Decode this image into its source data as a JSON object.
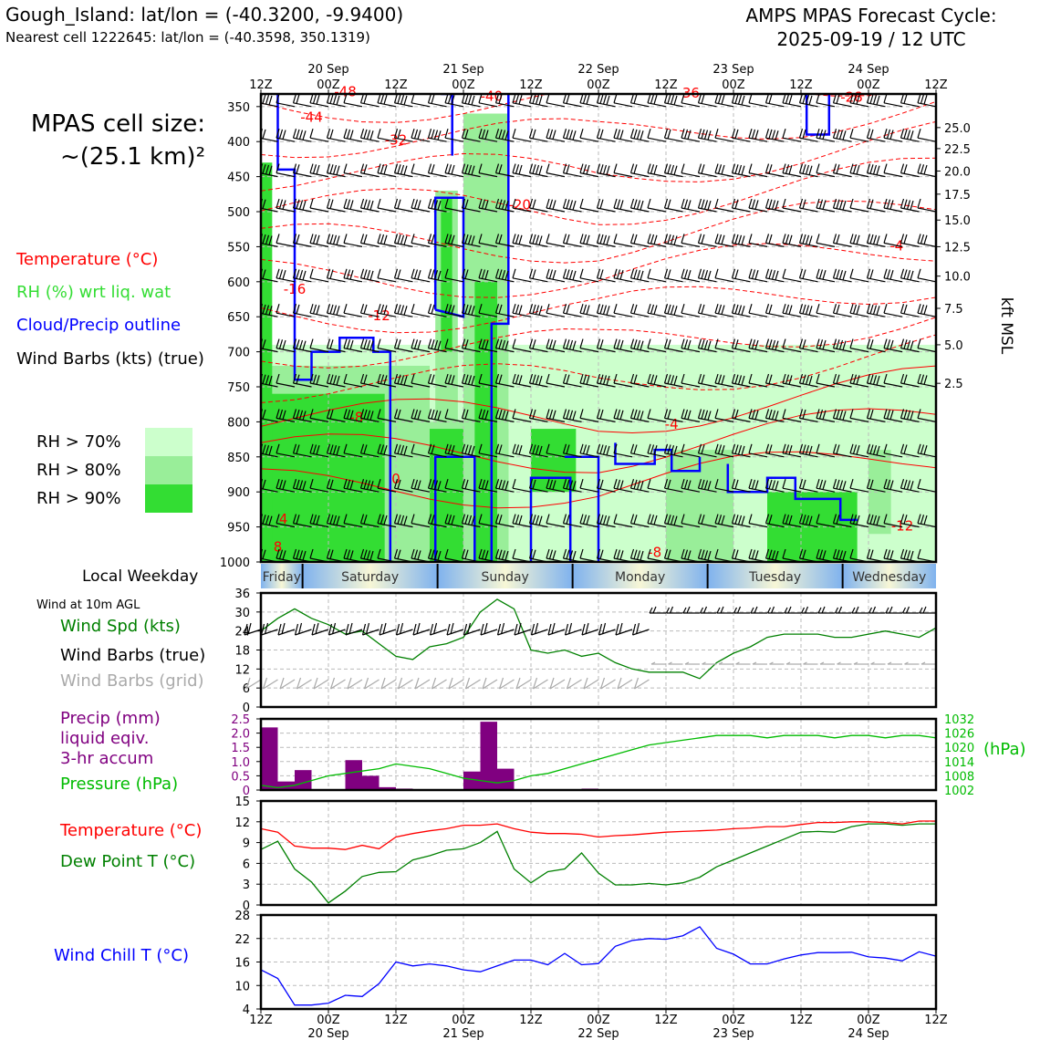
{
  "header": {
    "station": "Gough_Island: lat/lon = (-40.3200, -9.9400)",
    "nearest": "Nearest cell 1222645: lat/lon = (-40.3598, 350.1319)",
    "cycle_line1": "AMPS MPAS Forecast Cycle:",
    "cycle_line2": "2025-09-19 / 12 UTC",
    "cell_line1": "MPAS cell size:",
    "cell_line2": "~(25.1 km)²"
  },
  "legend": {
    "temperature": "Temperature (°C)",
    "rh": "RH (%) wrt liq. wat",
    "cloud": "Cloud/Precip outline",
    "wind": "Wind Barbs (kts) (true)",
    "rh70": "RH > 70%",
    "rh80": "RH > 80%",
    "rh90": "RH > 90%",
    "local_weekday": "Local Weekday",
    "wind10m": "Wind at 10m AGL",
    "wind_spd": "Wind Spd (kts)",
    "wind_barbs_true": "Wind Barbs (true)",
    "wind_barbs_grid": "Wind Barbs (grid)",
    "precip1": "Precip (mm)",
    "precip2": "liquid eqiv.",
    "precip3": "3-hr accum",
    "pressure": "Pressure (hPa)",
    "temp2": "Temperature (°C)",
    "dew": "Dew Point T (°C)",
    "windchill": "Wind Chill T (°C)"
  },
  "colors": {
    "temperature": "#ff0000",
    "rh": "#33dd33",
    "cloud": "#0000ff",
    "wind": "#000000",
    "rh70": "#ccffcc",
    "rh80": "#99ee99",
    "rh90": "#33dd33",
    "windspd": "#008000",
    "precip": "#800080",
    "pressure": "#00bb00",
    "dewpoint": "#008000",
    "windchill": "#0000ff",
    "grid_barbs": "#aaaaaa"
  },
  "time_axis": {
    "tick_labels": [
      "12Z",
      "00Z",
      "12Z",
      "00Z",
      "12Z",
      "00Z",
      "12Z",
      "00Z",
      "12Z",
      "00Z",
      "12Z"
    ],
    "tick_hours": [
      0,
      12,
      24,
      36,
      48,
      60,
      72,
      84,
      96,
      108,
      120
    ],
    "date_labels": [
      "20 Sep",
      "21 Sep",
      "22 Sep",
      "23 Sep",
      "24 Sep"
    ],
    "date_hours": [
      12,
      36,
      60,
      84,
      108
    ]
  },
  "weekdays": [
    "Friday",
    "Saturday",
    "Sunday",
    "Monday",
    "Tuesday",
    "Wednesday"
  ],
  "chart_data": [
    {
      "type": "heatmap",
      "title": "",
      "ylabel": "",
      "ylabel_right": "kft MSL",
      "y_ticks_hpa": [
        350,
        400,
        450,
        500,
        550,
        600,
        650,
        700,
        750,
        800,
        850,
        900,
        950,
        1000
      ],
      "right_ticks_kft": [
        "25.0",
        "22.5",
        "20.0",
        "17.5",
        "15.0",
        "12.5",
        "10.0",
        "7.5",
        "5.0",
        "2.5"
      ],
      "right_ticks_hpa": [
        380,
        410,
        442,
        475,
        512,
        550,
        592,
        638,
        690,
        745
      ],
      "temp_contour_labels": [
        {
          "text": "-48",
          "hour": 15,
          "hpa": 335
        },
        {
          "text": "-44",
          "hour": 9,
          "hpa": 372
        },
        {
          "text": "-40",
          "hour": 41,
          "hpa": 342
        },
        {
          "text": "-36",
          "hour": 76,
          "hpa": 337
        },
        {
          "text": "-28",
          "hour": 105,
          "hpa": 343
        },
        {
          "text": "-32",
          "hour": 24,
          "hpa": 404
        },
        {
          "text": "-20",
          "hour": 46,
          "hpa": 497
        },
        {
          "text": "-4",
          "hour": 113,
          "hpa": 555
        },
        {
          "text": "-16",
          "hour": 6,
          "hpa": 617
        },
        {
          "text": "-12",
          "hour": 21,
          "hpa": 655
        },
        {
          "text": "-8",
          "hour": 17,
          "hpa": 800
        },
        {
          "text": "-4",
          "hour": 73,
          "hpa": 810
        },
        {
          "text": "0",
          "hour": 24,
          "hpa": 888
        },
        {
          "text": "4",
          "hour": 4,
          "hpa": 945
        },
        {
          "text": "8",
          "hour": 3,
          "hpa": 985
        },
        {
          "text": "-8",
          "hour": 70,
          "hpa": 993
        },
        {
          "text": "-12",
          "hour": 114,
          "hpa": 955
        }
      ]
    },
    {
      "type": "line",
      "title": "",
      "ylabel": "",
      "ylim": [
        0,
        36
      ],
      "yticks": [
        0,
        6,
        12,
        18,
        24,
        30,
        36
      ],
      "x_hours": [
        0,
        3,
        6,
        9,
        12,
        15,
        18,
        21,
        24,
        27,
        30,
        33,
        36,
        39,
        42,
        45,
        48,
        51,
        54,
        57,
        60,
        63,
        66,
        69,
        72,
        75,
        78,
        81,
        84,
        87,
        90,
        93,
        96,
        99,
        102,
        105,
        108,
        111,
        114,
        117,
        120
      ],
      "series": [
        {
          "name": "Wind Spd (kts)",
          "values": [
            24,
            28,
            31,
            28,
            26,
            23,
            24,
            20,
            16,
            15,
            19,
            20,
            22,
            30,
            34,
            31,
            18,
            17,
            18,
            16,
            17,
            14,
            12,
            11,
            11,
            11,
            9,
            14,
            17,
            19,
            22,
            23,
            23,
            23,
            22,
            22,
            23,
            24,
            23,
            22,
            25
          ]
        }
      ]
    },
    {
      "type": "bar",
      "title": "",
      "ylabel": "",
      "ylim": [
        0,
        2.5
      ],
      "yticks": [
        "0",
        "0.5",
        "1.0",
        "1.5",
        "2.0",
        "2.5"
      ],
      "y2ticks": [
        "1002",
        "1008",
        "1014",
        "1020",
        "1026",
        "1032"
      ],
      "y2lim": [
        1002,
        1032
      ],
      "y2label": "(hPa)",
      "x_hours": [
        0,
        3,
        6,
        9,
        12,
        15,
        18,
        21,
        24,
        27,
        30,
        33,
        36,
        39,
        42,
        45,
        48,
        51,
        54,
        57,
        60,
        63,
        66,
        69,
        72,
        75,
        78,
        81,
        84,
        87,
        90,
        93,
        96,
        99,
        102,
        105,
        108,
        111,
        114,
        117,
        120
      ],
      "precip_start_hours": [
        0,
        3,
        6,
        9,
        12,
        15,
        18,
        21,
        24,
        27,
        30,
        33,
        36,
        39,
        42,
        45,
        48,
        51,
        54,
        57,
        60,
        63,
        66,
        69,
        72,
        75,
        78,
        81,
        84,
        87,
        90,
        93,
        96,
        99,
        102,
        105,
        108,
        111,
        114,
        117
      ],
      "series": [
        {
          "name": "Precip (mm)",
          "values": [
            2.2,
            0.3,
            0.7,
            0,
            0,
            1.05,
            0.5,
            0.1,
            0.05,
            0,
            0,
            0,
            0.65,
            2.4,
            0.75,
            0,
            0,
            0,
            0,
            0.05,
            0,
            0,
            0,
            0,
            0,
            0,
            0,
            0,
            0,
            0,
            0,
            0,
            0,
            0,
            0,
            0,
            0,
            0,
            0,
            0
          ]
        },
        {
          "name": "Pressure (hPa)",
          "values": [
            1004,
            1003,
            1004,
            1006,
            1008,
            1009,
            1010,
            1011,
            1013,
            1012,
            1011,
            1009,
            1007,
            1006,
            1005,
            1006,
            1008,
            1009,
            1011,
            1013,
            1015,
            1017,
            1019,
            1021,
            1022,
            1023,
            1024,
            1025,
            1025,
            1025,
            1024,
            1025,
            1025,
            1025,
            1024,
            1025,
            1025,
            1024,
            1025,
            1025,
            1024
          ]
        }
      ]
    },
    {
      "type": "line",
      "title": "",
      "ylabel": "",
      "ylim": [
        0,
        15
      ],
      "yticks": [
        0,
        3,
        6,
        9,
        12,
        15
      ],
      "x_hours": [
        0,
        3,
        6,
        9,
        12,
        15,
        18,
        21,
        24,
        27,
        30,
        33,
        36,
        39,
        42,
        45,
        48,
        51,
        54,
        57,
        60,
        63,
        66,
        69,
        72,
        75,
        78,
        81,
        84,
        87,
        90,
        93,
        96,
        99,
        102,
        105,
        108,
        111,
        114,
        117,
        120
      ],
      "series": [
        {
          "name": "Temperature (°C)",
          "values": [
            11,
            10.5,
            8.5,
            8.2,
            8.2,
            8,
            8.6,
            8.1,
            9.8,
            10.3,
            10.7,
            11,
            11.5,
            11.5,
            11.7,
            11,
            10.5,
            10.3,
            10.3,
            10.2,
            9.8,
            10,
            10.1,
            10.3,
            10.5,
            10.6,
            10.7,
            10.8,
            11,
            11.1,
            11.3,
            11.3,
            11.6,
            11.9,
            11.9,
            12,
            12,
            11.9,
            11.7,
            12.1,
            12.1
          ]
        },
        {
          "name": "Dew Point T (°C)",
          "values": [
            8,
            9.2,
            5.2,
            3.3,
            0.3,
            2,
            4.1,
            4.7,
            4.8,
            6.5,
            7.1,
            7.9,
            8.1,
            9,
            10.6,
            5.2,
            3.2,
            4.8,
            5.2,
            7.5,
            4.6,
            2.9,
            2.9,
            3.1,
            2.9,
            3.2,
            4,
            5.5,
            6.5,
            7.5,
            8.5,
            9.5,
            10.5,
            10.6,
            10.5,
            11.3,
            11.7,
            11.7,
            11.5,
            11.7,
            11.7
          ]
        }
      ]
    },
    {
      "type": "line",
      "title": "",
      "ylabel": "",
      "ylim": [
        4,
        28
      ],
      "yticks": [
        4,
        10,
        16,
        22,
        28
      ],
      "x_hours": [
        0,
        3,
        6,
        9,
        12,
        15,
        18,
        21,
        24,
        27,
        30,
        33,
        36,
        39,
        42,
        45,
        48,
        51,
        54,
        57,
        60,
        63,
        66,
        69,
        72,
        75,
        78,
        81,
        84,
        87,
        90,
        93,
        96,
        99,
        102,
        105,
        108,
        111,
        114,
        117,
        120
      ],
      "series": [
        {
          "name": "Wind Chill T (°C)",
          "values": [
            14,
            11.8,
            5,
            5,
            5.5,
            7.5,
            7.2,
            10.5,
            16,
            15,
            15.5,
            15,
            14,
            13.5,
            15,
            16.5,
            16.5,
            15.3,
            18.2,
            15.3,
            15.6,
            20,
            21.5,
            22,
            21.8,
            22.7,
            25,
            19.5,
            18,
            15.5,
            15.5,
            16.8,
            17.8,
            18.4,
            18.4,
            18.5,
            17.3,
            17,
            16.3,
            18.6,
            17.5
          ]
        }
      ]
    }
  ]
}
